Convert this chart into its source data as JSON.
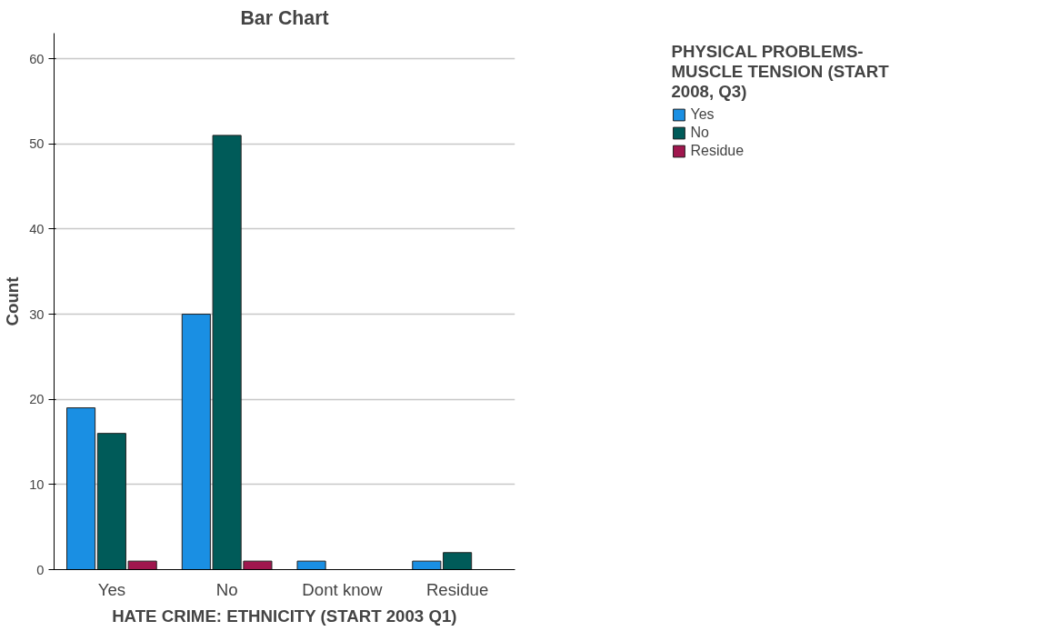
{
  "chart_data": {
    "type": "bar",
    "title": "Bar Chart",
    "xlabel": "HATE CRIME: ETHNICITY (START 2003 Q1)",
    "ylabel": "Count",
    "legend_title": "PHYSICAL PROBLEMS-MUSCLE TENSION (START 2008, Q3)",
    "categories": [
      "Yes",
      "No",
      "Dont know",
      "Residue"
    ],
    "series": [
      {
        "name": "Yes",
        "color": "#1a8fe3",
        "values": [
          19,
          30,
          1,
          1
        ]
      },
      {
        "name": "No",
        "color": "#005b59",
        "values": [
          16,
          51,
          null,
          2
        ]
      },
      {
        "name": "Residue",
        "color": "#a0174e",
        "values": [
          1,
          1,
          null,
          null
        ]
      }
    ],
    "ylim": [
      0,
      63
    ],
    "yticks": [
      0,
      10,
      20,
      30,
      40,
      50,
      60
    ],
    "grid": "y",
    "legend": "top right"
  }
}
